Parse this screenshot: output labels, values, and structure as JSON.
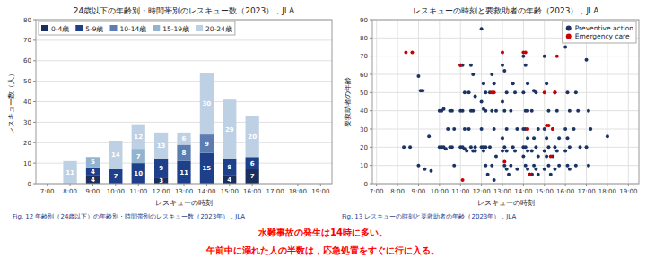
{
  "chart_data": [
    {
      "type": "bar",
      "title": "24歳以下の年齢別・時間帯別のレスキュー数（2023），JLA",
      "x_label": "レスキューの時刻",
      "y_label": "レスキュー数（人）",
      "categories": [
        "7:00",
        "8:00",
        "9:00",
        "10:00",
        "11:00",
        "12:00",
        "13:00",
        "14:00",
        "15:00",
        "16:00",
        "17:00",
        "18:00",
        "19:00"
      ],
      "series": [
        {
          "name": "0-4歳",
          "color": "#1a2f5e",
          "values": [
            0,
            0,
            4,
            0,
            0,
            3,
            0,
            0,
            4,
            7,
            0,
            0,
            0
          ]
        },
        {
          "name": "5-9歳",
          "color": "#1e3f8a",
          "values": [
            0,
            0,
            4,
            7,
            10,
            9,
            11,
            15,
            8,
            6,
            0,
            0,
            0
          ]
        },
        {
          "name": "10-14歳",
          "color": "#5b7db1",
          "values": [
            0,
            0,
            0,
            0,
            0,
            0,
            8,
            9,
            0,
            0,
            0,
            0,
            0
          ]
        },
        {
          "name": "15-19歳",
          "color": "#92b4d0",
          "values": [
            0,
            0,
            5,
            0,
            7,
            0,
            0,
            0,
            0,
            0,
            0,
            0,
            0
          ]
        },
        {
          "name": "20-24歳",
          "color": "#bdd0e4",
          "values": [
            0,
            11,
            0,
            14,
            12,
            13,
            6,
            30,
            29,
            20,
            0,
            0,
            0
          ]
        }
      ],
      "stacked": true,
      "data_labels": true,
      "ylim": [
        0,
        80
      ],
      "yticks": [
        0,
        10,
        20,
        30,
        40,
        50,
        60,
        70,
        80
      ],
      "grid": "y",
      "legend": "upper left",
      "annotations": [
        "Fig. 12  年齢別（24歳以下）の年齢別・時間帯別のレスキュー数（2023年），JLA",
        "水難事故の発生は14時に多い。",
        "午前中に溺れた人の半数は，応急処置をすぐに行に入る。"
      ]
    },
    {
      "type": "scatter",
      "title": "レスキューの時刻と要救助者の年齢（2023），JLA",
      "x_label": "レスキューの時刻",
      "y_label": "要救助者の年齢",
      "series": [
        {
          "name": "Preventive action",
          "color": "#1a3264",
          "x": [
            8.3,
            8.6,
            9.0,
            9.1,
            9.2,
            9.0,
            9.3,
            9.5,
            9.6,
            10.0,
            10.1,
            10.2,
            10.0,
            10.1,
            10.2,
            10.3,
            10.5,
            10.6,
            10.4,
            10.7,
            10.5,
            10.6,
            10.7,
            11.0,
            11.1,
            11.2,
            11.0,
            11.1,
            11.2,
            11.0,
            11.1,
            11.2,
            11.3,
            11.5,
            11.6,
            11.4,
            11.7,
            11.5,
            11.6,
            11.4,
            11.7,
            11.5,
            11.6,
            11.7,
            12.0,
            12.1,
            12.2,
            12.0,
            12.1,
            12.2,
            12.0,
            12.1,
            12.2,
            12.0,
            12.1,
            12.2,
            12.3,
            12.5,
            12.6,
            12.4,
            12.7,
            12.5,
            12.6,
            12.4,
            12.7,
            12.5,
            12.6,
            13.0,
            13.1,
            13.2,
            13.0,
            13.1,
            13.2,
            13.0,
            13.1,
            13.2,
            13.0,
            13.1,
            13.2,
            13.3,
            13.5,
            13.6,
            13.4,
            13.7,
            13.5,
            13.6,
            13.4,
            13.7,
            14.0,
            14.1,
            14.2,
            14.0,
            14.1,
            14.2,
            14.0,
            14.1,
            14.2,
            14.0,
            14.1,
            14.2,
            14.0,
            14.1,
            14.2,
            14.3,
            14.4,
            14.5,
            14.6,
            14.4,
            14.7,
            14.5,
            14.6,
            14.4,
            14.7,
            14.5,
            14.6,
            14.4,
            14.7,
            15.0,
            15.1,
            15.2,
            15.0,
            15.1,
            15.2,
            15.0,
            15.1,
            15.2,
            15.0,
            15.3,
            15.5,
            15.6,
            15.4,
            15.7,
            15.5,
            15.6,
            15.4,
            15.7,
            15.5,
            16.0,
            16.1,
            16.2,
            16.0,
            16.1,
            16.2,
            16.0,
            16.1,
            16.2,
            16.5,
            16.6,
            16.4,
            16.7,
            16.5,
            17.0,
            17.1,
            17.2,
            17.0,
            17.1,
            18.0
          ],
          "values": [
            20,
            20,
            59,
            51,
            51,
            10,
            8,
            26,
            7,
            40,
            40,
            41,
            20,
            20,
            20,
            19,
            40,
            40,
            30,
            30,
            20,
            20,
            10,
            65,
            65,
            50,
            40,
            40,
            30,
            20,
            20,
            19,
            18,
            65,
            60,
            50,
            48,
            40,
            40,
            30,
            20,
            20,
            18,
            18,
            85,
            55,
            50,
            45,
            41,
            40,
            30,
            20,
            20,
            20,
            18,
            10,
            5,
            60,
            55,
            50,
            40,
            40,
            30,
            20,
            15,
            10,
            2,
            65,
            62,
            50,
            45,
            40,
            30,
            25,
            20,
            18,
            18,
            10,
            8,
            5,
            55,
            50,
            40,
            30,
            20,
            18,
            10,
            8,
            70,
            65,
            55,
            50,
            40,
            40,
            30,
            30,
            25,
            20,
            20,
            18,
            15,
            10,
            8,
            5,
            5,
            51,
            50,
            40,
            30,
            25,
            20,
            18,
            15,
            10,
            8,
            5,
            5,
            70,
            55,
            40,
            30,
            25,
            20,
            18,
            15,
            10,
            8,
            5,
            50,
            40,
            30,
            25,
            20,
            18,
            15,
            10,
            8,
            75,
            50,
            40,
            30,
            25,
            20,
            18,
            10,
            8,
            50,
            40,
            30,
            20,
            10,
            68,
            40,
            30,
            20,
            10,
            26
          ]
        },
        {
          "name": "Emergency care",
          "color": "#cc0000",
          "x": [
            8.4,
            8.7,
            11.0,
            11.1,
            12.5,
            12.6,
            13.0,
            13.1,
            14.0,
            14.1,
            14.2,
            14.3,
            15.0,
            15.1,
            15.2,
            15.3,
            15.5,
            15.6,
            15.4
          ],
          "values": [
            72,
            72,
            65,
            2,
            50,
            50,
            72,
            12,
            72,
            72,
            30,
            5,
            50,
            32,
            32,
            15,
            50,
            70,
            30
          ]
        }
      ],
      "xlim": [
        6.8,
        19.5
      ],
      "xticks": [
        {
          "value": 7,
          "label": "7:00"
        },
        {
          "value": 8,
          "label": "8:00"
        },
        {
          "value": 9,
          "label": "9:00"
        },
        {
          "value": 10,
          "label": "10:00"
        },
        {
          "value": 11,
          "label": "11:00"
        },
        {
          "value": 12,
          "label": "12:00"
        },
        {
          "value": 13,
          "label": "13:00"
        },
        {
          "value": 14,
          "label": "14:00"
        },
        {
          "value": 15,
          "label": "15:00"
        },
        {
          "value": 16,
          "label": "16:00"
        },
        {
          "value": 17,
          "label": "17:00"
        },
        {
          "value": 18,
          "label": "18:00"
        },
        {
          "value": 19,
          "label": "19:00"
        }
      ],
      "ylim": [
        0,
        90
      ],
      "yticks": [
        0,
        10,
        20,
        30,
        40,
        50,
        60,
        70,
        80,
        90
      ],
      "grid": true,
      "legend": "upper right",
      "annotations": [
        "Fig. 13  レスキューの時刻と要救助者の年齢（2023年），JLA"
      ]
    }
  ]
}
